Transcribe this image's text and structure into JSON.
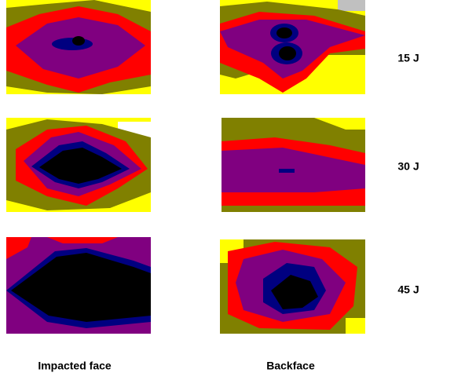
{
  "rows": [
    {
      "label": "15 J"
    },
    {
      "label": "30 J"
    },
    {
      "label": "45 J"
    }
  ],
  "columns": [
    {
      "label": "Impacted face"
    },
    {
      "label": "Backface"
    }
  ]
}
